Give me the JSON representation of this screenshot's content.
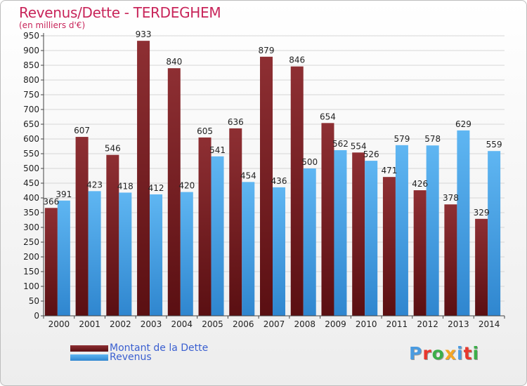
{
  "page": {
    "title": "Revenus/Dette - TERDEGHEM",
    "subtitle": "(en milliers d'€)",
    "logo": {
      "letters": [
        "P",
        "r",
        "o",
        "x",
        "i",
        "t",
        "i"
      ],
      "colors": [
        "#4a9be0",
        "#e8372c",
        "#3cae49",
        "#f5a623",
        "#4a9be0",
        "#e8372c",
        "#3cae49"
      ]
    }
  },
  "chart_data": {
    "type": "bar",
    "title": "Revenus/Dette - TERDEGHEM",
    "subtitle": "(en milliers d'€)",
    "categories": [
      "2000",
      "2001",
      "2002",
      "2003",
      "2004",
      "2005",
      "2006",
      "2007",
      "2008",
      "2009",
      "2010",
      "2011",
      "2012",
      "2013",
      "2014"
    ],
    "series": [
      {
        "name": "Montant de la Dette",
        "color": "#7a1f22",
        "values": [
          366,
          607,
          546,
          933,
          840,
          605,
          636,
          879,
          846,
          654,
          554,
          471,
          426,
          378,
          329
        ]
      },
      {
        "name": "Revenus",
        "color": "#4aa3e6",
        "values": [
          391,
          423,
          418,
          412,
          420,
          541,
          454,
          436,
          500,
          562,
          526,
          579,
          578,
          629,
          559
        ]
      }
    ],
    "ylim": [
      0,
      950
    ],
    "ytick_step": 50,
    "grid": true,
    "legend": "bottom-left"
  }
}
